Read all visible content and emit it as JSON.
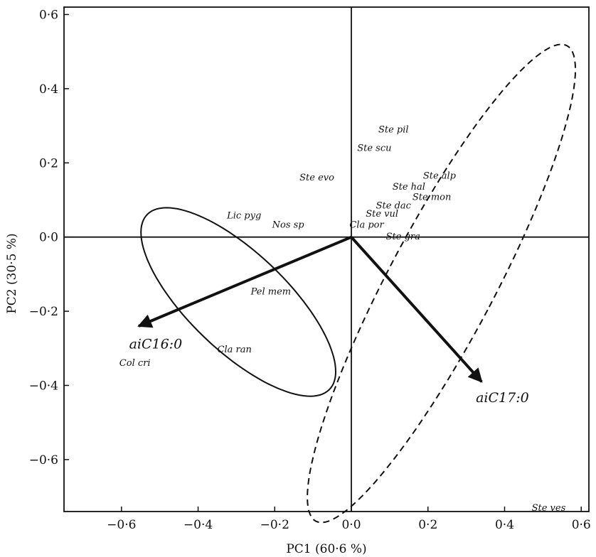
{
  "chart_data": {
    "type": "scatter",
    "title": "",
    "xlabel": "PC1 (60·6 %)",
    "ylabel": "PC2 (30·5 %)",
    "xlim": [
      -0.75,
      0.62
    ],
    "ylim": [
      -0.74,
      0.62
    ],
    "x_ticks": [
      -0.6,
      -0.4,
      -0.2,
      0.0,
      0.2,
      0.4,
      0.6
    ],
    "x_tick_labels": [
      "−0·6",
      "−0·4",
      "−0·2",
      "0·0",
      "0·2",
      "0·4",
      "0·6"
    ],
    "y_ticks": [
      0.6,
      0.4,
      0.2,
      0.0,
      -0.2,
      -0.4,
      -0.6
    ],
    "y_tick_labels": [
      "0·6",
      "0·4",
      "0·2",
      "0·0",
      "−0·2",
      "−0·4",
      "−0·6"
    ],
    "grid": false,
    "zero_lines": true,
    "points": [
      {
        "label": "Ste pil",
        "x": 0.11,
        "y": 0.29
      },
      {
        "label": "Ste scu",
        "x": 0.06,
        "y": 0.24
      },
      {
        "label": "Ste evo",
        "x": -0.09,
        "y": 0.16
      },
      {
        "label": "Ste alp",
        "x": 0.23,
        "y": 0.165
      },
      {
        "label": "Ste hal",
        "x": 0.15,
        "y": 0.135
      },
      {
        "label": "Ste mon",
        "x": 0.21,
        "y": 0.108
      },
      {
        "label": "Ste dac",
        "x": 0.11,
        "y": 0.085
      },
      {
        "label": "Ste vul",
        "x": 0.08,
        "y": 0.063
      },
      {
        "label": "Cla por",
        "x": 0.04,
        "y": 0.033
      },
      {
        "label": "Ste gra",
        "x": 0.135,
        "y": 0.001
      },
      {
        "label": "Lic pyg",
        "x": -0.28,
        "y": 0.058
      },
      {
        "label": "Nos sp",
        "x": -0.165,
        "y": 0.033
      },
      {
        "label": "Pel mem",
        "x": -0.21,
        "y": -0.147
      },
      {
        "label": "Cla ran",
        "x": -0.305,
        "y": -0.303
      },
      {
        "label": "Col cri",
        "x": -0.565,
        "y": -0.34
      },
      {
        "label": "Ste ves",
        "x": 0.515,
        "y": -0.73
      }
    ],
    "vectors": [
      {
        "label": "aiC16:0",
        "x": -0.555,
        "y": -0.24
      },
      {
        "label": "aiC17:0",
        "x": 0.34,
        "y": -0.39
      }
    ],
    "vector_labels": [
      {
        "text": "aiC16:0",
        "x": -0.58,
        "y": -0.3
      },
      {
        "text": "aiC17:0",
        "x": 0.325,
        "y": -0.445
      }
    ],
    "ellipses": [
      {
        "style": "solid",
        "cx": -0.295,
        "cy": -0.175,
        "rx": 0.13,
        "ry": 0.335,
        "angle_deg": 45
      },
      {
        "style": "dashed",
        "cx": 0.235,
        "cy": -0.125,
        "rx": 0.14,
        "ry": 0.72,
        "angle_deg": -27
      }
    ]
  }
}
